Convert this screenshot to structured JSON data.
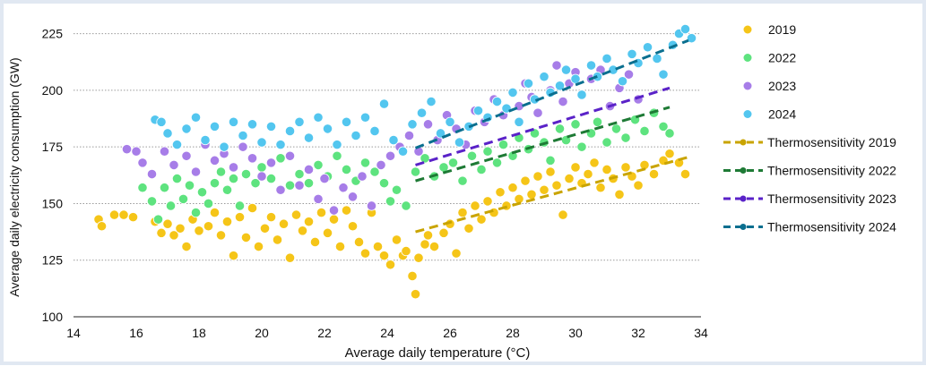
{
  "chart_data": {
    "type": "scatter",
    "xlabel": "Average daily temperature (°C)",
    "ylabel": "Average daily electricity consumption (GW)",
    "xlim": [
      14,
      34
    ],
    "ylim": [
      100,
      228
    ],
    "xticks": [
      14,
      16,
      18,
      20,
      22,
      24,
      26,
      28,
      30,
      32,
      34
    ],
    "yticks": [
      100,
      125,
      150,
      175,
      200,
      225
    ],
    "grid": "horizontal dotted",
    "legend_position": "right",
    "series": [
      {
        "name": "2019",
        "color": "#f5c518",
        "points": [
          [
            14.8,
            143
          ],
          [
            14.9,
            140
          ],
          [
            15.3,
            145
          ],
          [
            15.6,
            145
          ],
          [
            15.9,
            144
          ],
          [
            16.6,
            142
          ],
          [
            16.8,
            137
          ],
          [
            17.0,
            141
          ],
          [
            17.2,
            136
          ],
          [
            17.4,
            139
          ],
          [
            17.6,
            131
          ],
          [
            17.8,
            143
          ],
          [
            18.0,
            138
          ],
          [
            18.3,
            140
          ],
          [
            18.5,
            146
          ],
          [
            18.7,
            136
          ],
          [
            18.9,
            142
          ],
          [
            19.1,
            127
          ],
          [
            19.3,
            144
          ],
          [
            19.5,
            135
          ],
          [
            19.7,
            148
          ],
          [
            19.9,
            131
          ],
          [
            20.1,
            139
          ],
          [
            20.3,
            144
          ],
          [
            20.5,
            134
          ],
          [
            20.7,
            141
          ],
          [
            20.9,
            126
          ],
          [
            21.1,
            145
          ],
          [
            21.3,
            138
          ],
          [
            21.5,
            142
          ],
          [
            21.7,
            133
          ],
          [
            21.9,
            146
          ],
          [
            22.1,
            137
          ],
          [
            22.3,
            143
          ],
          [
            22.5,
            131
          ],
          [
            22.7,
            147
          ],
          [
            22.9,
            140
          ],
          [
            23.1,
            133
          ],
          [
            23.3,
            128
          ],
          [
            23.5,
            146
          ],
          [
            23.7,
            131
          ],
          [
            23.9,
            127
          ],
          [
            24.1,
            123
          ],
          [
            24.3,
            134
          ],
          [
            24.5,
            127
          ],
          [
            24.6,
            129
          ],
          [
            24.8,
            118
          ],
          [
            24.9,
            110
          ],
          [
            25.0,
            126
          ],
          [
            25.2,
            132
          ],
          [
            25.3,
            136
          ],
          [
            25.5,
            131
          ],
          [
            25.8,
            137
          ],
          [
            26.0,
            141
          ],
          [
            26.2,
            128
          ],
          [
            26.4,
            146
          ],
          [
            26.6,
            139
          ],
          [
            26.8,
            149
          ],
          [
            27.0,
            143
          ],
          [
            27.2,
            151
          ],
          [
            27.4,
            146
          ],
          [
            27.6,
            155
          ],
          [
            27.8,
            149
          ],
          [
            28.0,
            157
          ],
          [
            28.2,
            152
          ],
          [
            28.4,
            160
          ],
          [
            28.6,
            154
          ],
          [
            28.8,
            162
          ],
          [
            29.0,
            156
          ],
          [
            29.2,
            164
          ],
          [
            29.4,
            158
          ],
          [
            29.6,
            145
          ],
          [
            29.8,
            161
          ],
          [
            30.0,
            166
          ],
          [
            30.2,
            159
          ],
          [
            30.4,
            163
          ],
          [
            30.6,
            168
          ],
          [
            30.8,
            157
          ],
          [
            31.0,
            165
          ],
          [
            31.2,
            161
          ],
          [
            31.4,
            154
          ],
          [
            31.6,
            166
          ],
          [
            31.8,
            162
          ],
          [
            32.0,
            158
          ],
          [
            32.2,
            167
          ],
          [
            32.5,
            163
          ],
          [
            32.8,
            169
          ],
          [
            33.0,
            172
          ],
          [
            33.3,
            168
          ],
          [
            33.5,
            163
          ]
        ]
      },
      {
        "name": "2022",
        "color": "#5ee37f",
        "points": [
          [
            16.2,
            157
          ],
          [
            16.5,
            151
          ],
          [
            16.7,
            143
          ],
          [
            16.9,
            157
          ],
          [
            17.1,
            149
          ],
          [
            17.3,
            161
          ],
          [
            17.5,
            152
          ],
          [
            17.7,
            158
          ],
          [
            17.9,
            146
          ],
          [
            18.1,
            155
          ],
          [
            18.3,
            150
          ],
          [
            18.5,
            159
          ],
          [
            18.7,
            164
          ],
          [
            18.9,
            156
          ],
          [
            19.1,
            161
          ],
          [
            19.3,
            149
          ],
          [
            19.5,
            163
          ],
          [
            19.8,
            159
          ],
          [
            20.0,
            166
          ],
          [
            20.3,
            161
          ],
          [
            20.6,
            170
          ],
          [
            20.9,
            158
          ],
          [
            21.2,
            163
          ],
          [
            21.5,
            159
          ],
          [
            21.8,
            167
          ],
          [
            22.1,
            162
          ],
          [
            22.4,
            171
          ],
          [
            22.7,
            165
          ],
          [
            23.0,
            160
          ],
          [
            23.3,
            168
          ],
          [
            23.6,
            164
          ],
          [
            23.9,
            159
          ],
          [
            24.1,
            151
          ],
          [
            24.3,
            156
          ],
          [
            24.6,
            149
          ],
          [
            24.9,
            164
          ],
          [
            25.2,
            170
          ],
          [
            25.5,
            162
          ],
          [
            25.8,
            166
          ],
          [
            26.1,
            168
          ],
          [
            26.4,
            160
          ],
          [
            26.7,
            171
          ],
          [
            27.0,
            165
          ],
          [
            27.2,
            173
          ],
          [
            27.5,
            168
          ],
          [
            27.7,
            176
          ],
          [
            28.0,
            171
          ],
          [
            28.2,
            179
          ],
          [
            28.5,
            174
          ],
          [
            28.7,
            181
          ],
          [
            29.0,
            177
          ],
          [
            29.2,
            169
          ],
          [
            29.5,
            183
          ],
          [
            29.7,
            178
          ],
          [
            30.0,
            185
          ],
          [
            30.2,
            175
          ],
          [
            30.5,
            181
          ],
          [
            30.7,
            186
          ],
          [
            31.0,
            177
          ],
          [
            31.3,
            183
          ],
          [
            31.6,
            179
          ],
          [
            31.9,
            187
          ],
          [
            32.2,
            182
          ],
          [
            32.5,
            190
          ],
          [
            32.8,
            184
          ],
          [
            33.0,
            181
          ]
        ]
      },
      {
        "name": "2023",
        "color": "#a77de8",
        "points": [
          [
            15.7,
            174
          ],
          [
            16.0,
            173
          ],
          [
            16.2,
            168
          ],
          [
            16.5,
            163
          ],
          [
            16.9,
            173
          ],
          [
            17.2,
            167
          ],
          [
            17.6,
            171
          ],
          [
            17.9,
            164
          ],
          [
            18.2,
            176
          ],
          [
            18.5,
            169
          ],
          [
            18.8,
            172
          ],
          [
            19.1,
            166
          ],
          [
            19.4,
            175
          ],
          [
            19.7,
            170
          ],
          [
            20.0,
            162
          ],
          [
            20.3,
            168
          ],
          [
            20.6,
            156
          ],
          [
            20.9,
            171
          ],
          [
            21.2,
            158
          ],
          [
            21.5,
            165
          ],
          [
            21.8,
            152
          ],
          [
            22.0,
            161
          ],
          [
            22.3,
            147
          ],
          [
            22.6,
            157
          ],
          [
            22.9,
            153
          ],
          [
            23.2,
            162
          ],
          [
            23.5,
            149
          ],
          [
            23.8,
            167
          ],
          [
            24.1,
            171
          ],
          [
            24.4,
            175
          ],
          [
            24.7,
            180
          ],
          [
            25.0,
            173
          ],
          [
            25.3,
            185
          ],
          [
            25.6,
            178
          ],
          [
            25.9,
            189
          ],
          [
            26.2,
            183
          ],
          [
            26.5,
            176
          ],
          [
            26.8,
            191
          ],
          [
            27.1,
            186
          ],
          [
            27.4,
            196
          ],
          [
            27.7,
            189
          ],
          [
            28.0,
            199
          ],
          [
            28.2,
            193
          ],
          [
            28.4,
            203
          ],
          [
            28.6,
            197
          ],
          [
            28.8,
            190
          ],
          [
            29.0,
            206
          ],
          [
            29.2,
            200
          ],
          [
            29.4,
            211
          ],
          [
            29.6,
            195
          ],
          [
            29.8,
            203
          ],
          [
            30.0,
            208
          ],
          [
            30.2,
            198
          ],
          [
            30.5,
            205
          ],
          [
            30.8,
            209
          ],
          [
            31.1,
            193
          ],
          [
            31.4,
            201
          ],
          [
            31.7,
            207
          ],
          [
            32.0,
            196
          ]
        ]
      },
      {
        "name": "2024",
        "color": "#53c6ef",
        "points": [
          [
            16.6,
            187
          ],
          [
            16.8,
            186
          ],
          [
            17.0,
            181
          ],
          [
            17.3,
            176
          ],
          [
            17.6,
            183
          ],
          [
            17.9,
            188
          ],
          [
            18.2,
            178
          ],
          [
            18.5,
            184
          ],
          [
            18.8,
            175
          ],
          [
            19.1,
            186
          ],
          [
            19.4,
            180
          ],
          [
            19.7,
            185
          ],
          [
            20.0,
            177
          ],
          [
            20.3,
            184
          ],
          [
            20.6,
            176
          ],
          [
            20.9,
            182
          ],
          [
            21.2,
            186
          ],
          [
            21.5,
            179
          ],
          [
            21.8,
            188
          ],
          [
            22.1,
            183
          ],
          [
            22.4,
            176
          ],
          [
            22.7,
            186
          ],
          [
            23.0,
            180
          ],
          [
            23.3,
            188
          ],
          [
            23.6,
            182
          ],
          [
            23.9,
            194
          ],
          [
            24.2,
            178
          ],
          [
            24.5,
            173
          ],
          [
            24.8,
            185
          ],
          [
            25.1,
            190
          ],
          [
            25.4,
            195
          ],
          [
            25.7,
            181
          ],
          [
            26.0,
            186
          ],
          [
            26.3,
            177
          ],
          [
            26.6,
            184
          ],
          [
            26.9,
            191
          ],
          [
            27.2,
            188
          ],
          [
            27.5,
            195
          ],
          [
            27.8,
            192
          ],
          [
            28.0,
            199
          ],
          [
            28.2,
            186
          ],
          [
            28.5,
            203
          ],
          [
            28.7,
            196
          ],
          [
            29.0,
            206
          ],
          [
            29.2,
            199
          ],
          [
            29.5,
            202
          ],
          [
            29.7,
            209
          ],
          [
            30.0,
            205
          ],
          [
            30.2,
            198
          ],
          [
            30.5,
            211
          ],
          [
            30.7,
            206
          ],
          [
            31.0,
            214
          ],
          [
            31.2,
            209
          ],
          [
            31.5,
            204
          ],
          [
            31.8,
            216
          ],
          [
            32.0,
            212
          ],
          [
            32.3,
            219
          ],
          [
            32.6,
            214
          ],
          [
            32.8,
            207
          ],
          [
            33.1,
            220
          ],
          [
            33.3,
            225
          ],
          [
            33.5,
            227
          ],
          [
            33.7,
            223
          ]
        ]
      }
    ],
    "trendlines": [
      {
        "name": "Thermosensitivity 2019",
        "color": "#c9a400",
        "x": [
          24.9,
          33.6
        ],
        "y": [
          137.5,
          170.5
        ]
      },
      {
        "name": "Thermosensitivity 2022",
        "color": "#1e7a35",
        "x": [
          24.9,
          33.0
        ],
        "y": [
          160,
          192.5
        ]
      },
      {
        "name": "Thermosensitivity 2023",
        "color": "#5a22c8",
        "x": [
          24.9,
          33.0
        ],
        "y": [
          167,
          201
        ]
      },
      {
        "name": "Thermosensitivity 2024",
        "color": "#0a6f8f",
        "x": [
          24.9,
          33.6
        ],
        "y": [
          174.5,
          222
        ]
      }
    ]
  }
}
